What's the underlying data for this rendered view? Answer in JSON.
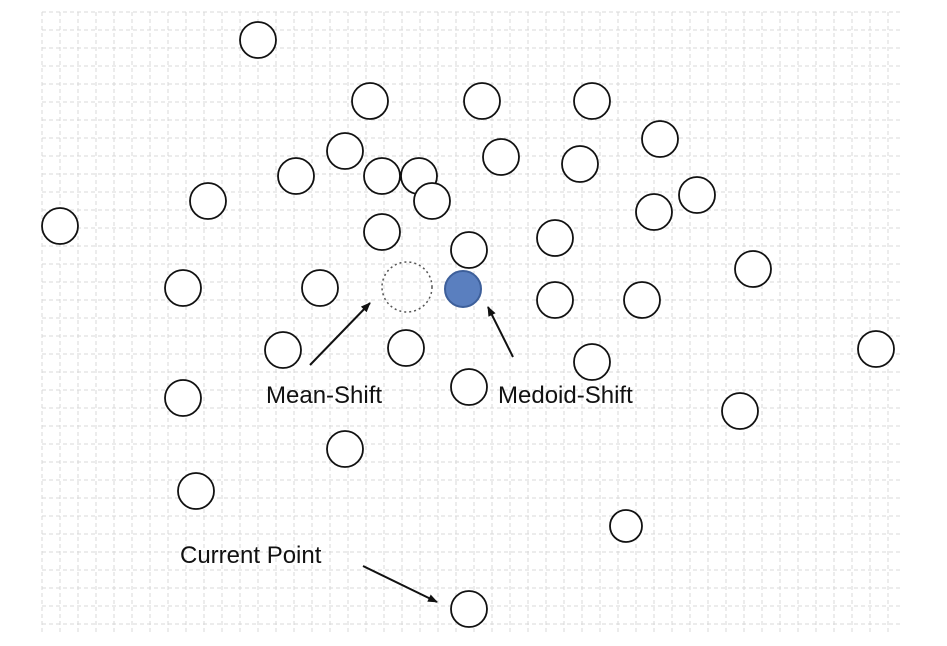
{
  "labels": {
    "mean_shift": "Mean-Shift",
    "medoid_shift": "Medoid-Shift",
    "current_point": "Current Point"
  },
  "colors": {
    "grid": "#d8d8d8",
    "point_stroke": "#111111",
    "point_fill": "#ffffff",
    "medoid_fill": "#5a7fbf",
    "medoid_stroke": "#3d5f9a",
    "mean_shift_stroke": "#555555"
  }
}
